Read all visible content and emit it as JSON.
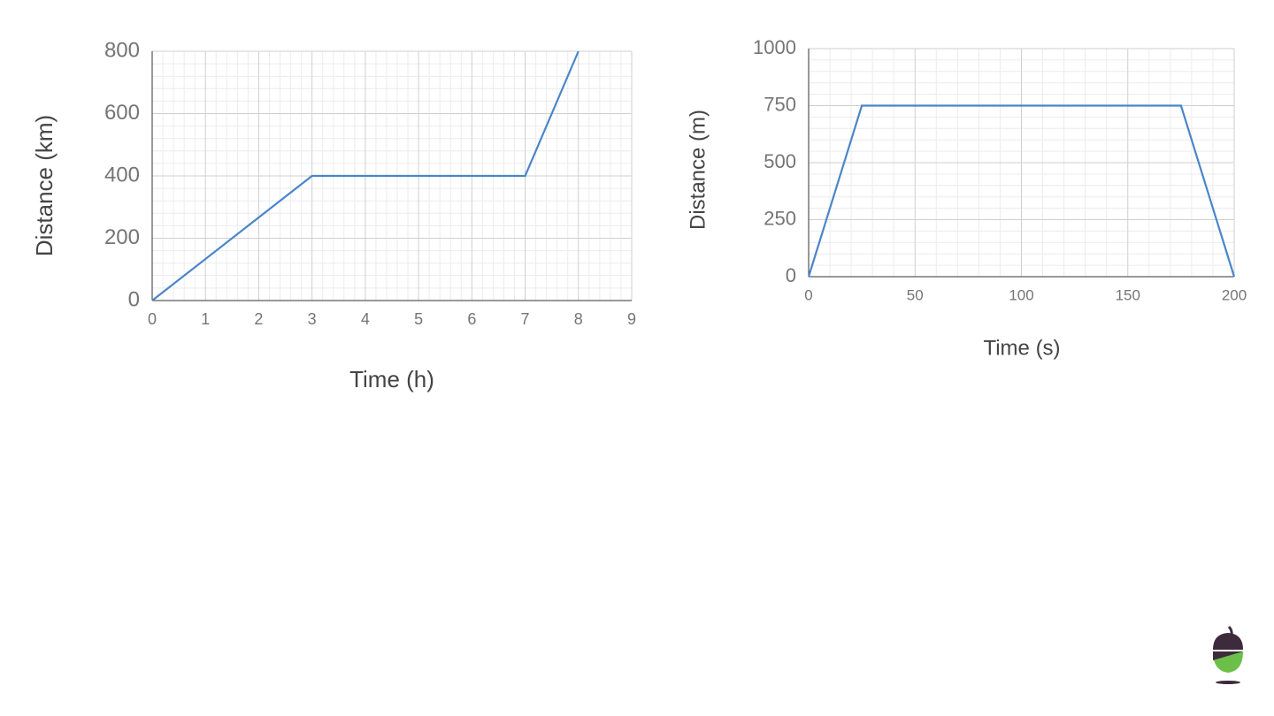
{
  "chart_data": [
    {
      "type": "line",
      "x_label": "Time (h)",
      "y_label": "Distance (km)",
      "x": [
        0,
        3,
        7,
        8
      ],
      "series": [
        {
          "color": "#4a86c8",
          "values": [
            0,
            400,
            400,
            800
          ]
        }
      ],
      "xlim": [
        0,
        9
      ],
      "ylim": [
        0,
        800
      ],
      "xticks": [
        0,
        1,
        2,
        3,
        4,
        5,
        6,
        7,
        8,
        9
      ],
      "yticks": [
        0,
        200,
        400,
        600,
        800
      ],
      "grid": true
    },
    {
      "type": "line",
      "x_label": "Time (s)",
      "y_label": "Distance (m)",
      "x": [
        0,
        25,
        175,
        200
      ],
      "series": [
        {
          "color": "#4a86c8",
          "values": [
            0,
            750,
            750,
            0
          ]
        }
      ],
      "xlim": [
        0,
        200
      ],
      "ylim": [
        0,
        1000
      ],
      "xticks": [
        0,
        50,
        100,
        150,
        200
      ],
      "yticks": [
        0,
        250,
        500,
        750,
        1000
      ],
      "grid": true
    }
  ]
}
